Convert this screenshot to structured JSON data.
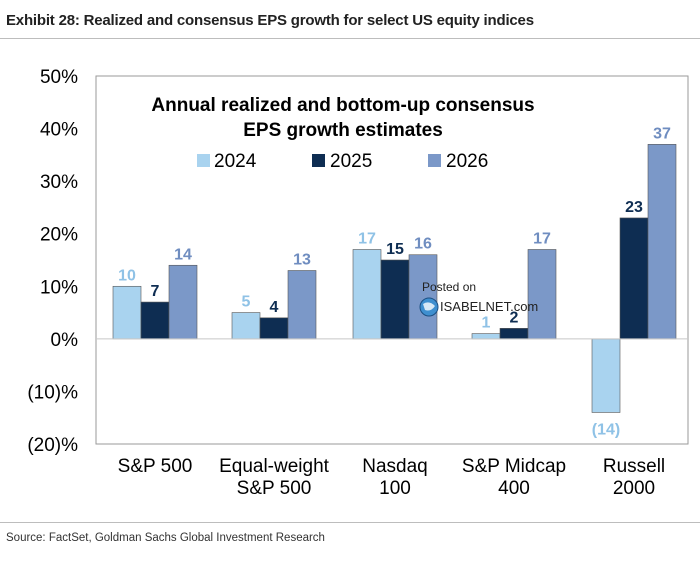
{
  "header": {
    "exhibit_title": "Exhibit 28: Realized and consensus EPS growth for select US equity indices"
  },
  "footer": {
    "source": "Source: FactSet, Goldman Sachs Global Investment Research"
  },
  "watermark": {
    "line1": "Posted on",
    "line2": "ISABELNET.com"
  },
  "chart_data": {
    "type": "bar",
    "title": "Annual realized and bottom-up consensus EPS growth estimates",
    "title_lines": [
      "Annual realized and bottom-up consensus",
      "EPS growth estimates"
    ],
    "categories": [
      [
        "S&P 500"
      ],
      [
        "Equal-weight",
        "S&P 500"
      ],
      [
        "Nasdaq",
        "100"
      ],
      [
        "S&P Midcap",
        "400"
      ],
      [
        "Russell",
        "2000"
      ]
    ],
    "series": [
      {
        "name": "2024",
        "color": "#a9d3ef",
        "label_color": "#8fc2e6",
        "values": [
          10,
          5,
          17,
          1,
          -14
        ],
        "labels": [
          "10",
          "5",
          "17",
          "1",
          "(14)"
        ]
      },
      {
        "name": "2025",
        "color": "#0e2d52",
        "label_color": "#0e2d52",
        "values": [
          7,
          4,
          15,
          2,
          23
        ],
        "labels": [
          "7",
          "4",
          "15",
          "2",
          "23"
        ]
      },
      {
        "name": "2026",
        "color": "#7b98c8",
        "label_color": "#6f8dc0",
        "values": [
          14,
          13,
          16,
          17,
          37
        ],
        "labels": [
          "14",
          "13",
          "16",
          "17",
          "37"
        ]
      }
    ],
    "y_ticks": [
      50,
      40,
      30,
      20,
      10,
      0,
      -10,
      -20
    ],
    "y_tick_labels": [
      "50%",
      "40%",
      "30%",
      "20%",
      "10%",
      "0%",
      "(10)%",
      "(20)%"
    ],
    "ylim": [
      -20,
      50
    ],
    "legend_position": "top-center",
    "grid": false
  }
}
